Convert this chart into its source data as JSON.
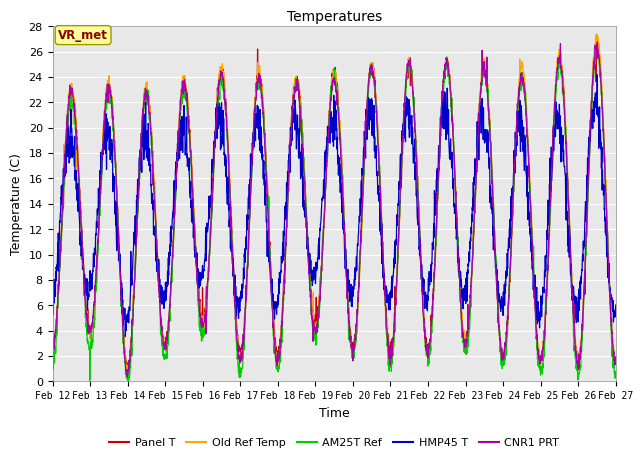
{
  "title": "Temperatures",
  "xlabel": "Time",
  "ylabel": "Temperature (C)",
  "ylim": [
    0,
    28
  ],
  "yticks": [
    0,
    2,
    4,
    6,
    8,
    10,
    12,
    14,
    16,
    18,
    20,
    22,
    24,
    26,
    28
  ],
  "annotation_text": "VR_met",
  "annotation_color": "#8B0000",
  "annotation_bg": "#FFFF99",
  "plot_bg_color": "#E8E8E8",
  "fig_bg_color": "#FFFFFF",
  "grid_color": "#FFFFFF",
  "series": [
    {
      "name": "Panel T",
      "color": "#CC0000"
    },
    {
      "name": "Old Ref Temp",
      "color": "#FFA500"
    },
    {
      "name": "AM25T Ref",
      "color": "#00CC00"
    },
    {
      "name": "HMP45 T",
      "color": "#0000CC"
    },
    {
      "name": "CNR1 PRT",
      "color": "#AA00AA"
    }
  ],
  "x_tick_labels": [
    "Feb 12",
    "Feb 13",
    "Feb 14",
    "Feb 15",
    "Feb 16",
    "Feb 17",
    "Feb 18",
    "Feb 19",
    "Feb 20",
    "Feb 21",
    "Feb 22",
    "Feb 23",
    "Feb 24",
    "Feb 25",
    "Feb 26",
    "Feb 27"
  ],
  "n_days": 15,
  "points_per_day": 144
}
